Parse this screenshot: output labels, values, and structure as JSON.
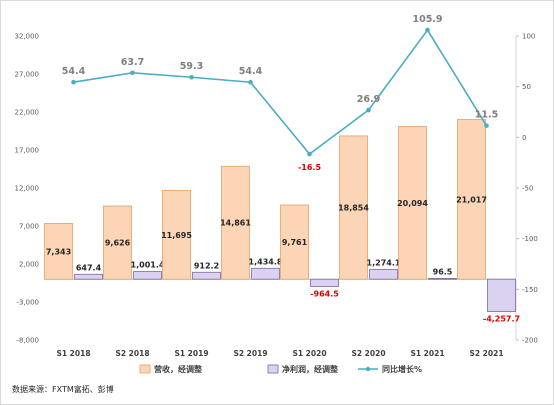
{
  "chart_data": {
    "type": "bar",
    "categories": [
      "S1 2018",
      "S2 2018",
      "S1 2019",
      "S2 2019",
      "S1 2020",
      "S2 2020",
      "S1 2021",
      "S2 2021"
    ],
    "series": [
      {
        "name": "营收，经调整",
        "type": "bar",
        "axis": "left",
        "color": "#fbd5b5",
        "stroke": "#e8a064",
        "values": [
          7343,
          9626,
          11695,
          14861,
          9761,
          18854,
          20094,
          21017
        ],
        "labels": [
          "7,343",
          "9,626",
          "11,695",
          "14,861",
          "9,761",
          "18,854",
          "20,094",
          "21,017"
        ]
      },
      {
        "name": "净利润，经调整",
        "type": "bar",
        "axis": "left",
        "color": "#d9d2f0",
        "stroke": "#8064a2",
        "values": [
          647.4,
          1001.4,
          912.2,
          1434.8,
          -964.5,
          1274.1,
          96.5,
          -4257.7
        ],
        "labels": [
          "647.4",
          "1,001.4",
          "912.2",
          "1,434.8",
          "-964.5",
          "1,274.1",
          "96.5",
          "-4,257.7"
        ]
      },
      {
        "name": "同比增长%",
        "type": "line",
        "axis": "right",
        "color": "#4bacc6",
        "values": [
          54.4,
          63.7,
          59.3,
          54.4,
          -16.5,
          26.9,
          105.9,
          11.5
        ],
        "labels": [
          "54.4",
          "63.7",
          "59.3",
          "54.4",
          "-16.5",
          "26.9",
          "105.9",
          "11.5"
        ]
      }
    ],
    "y_left": {
      "ticks": [
        32000,
        27000,
        22000,
        17000,
        12000,
        7000,
        2000,
        -3000,
        -8000
      ],
      "tick_labels": [
        "32,000",
        "27,000",
        "22,000",
        "17,000",
        "12,000",
        "7,000",
        "2,000",
        "-3,000",
        "-8,000"
      ],
      "ylim": [
        -8000,
        32000
      ]
    },
    "y_right": {
      "ticks": [
        100,
        50,
        0,
        -50,
        -100,
        -150,
        -200
      ],
      "tick_labels": [
        "100",
        "50",
        "0",
        "-50",
        "-100",
        "-150",
        "-200"
      ],
      "ylim": [
        -200,
        100
      ]
    },
    "grid": false,
    "legend_position": "bottom",
    "negative_label_color": "#e00000"
  },
  "source": "数据来源：FXTM富拓、彭博"
}
